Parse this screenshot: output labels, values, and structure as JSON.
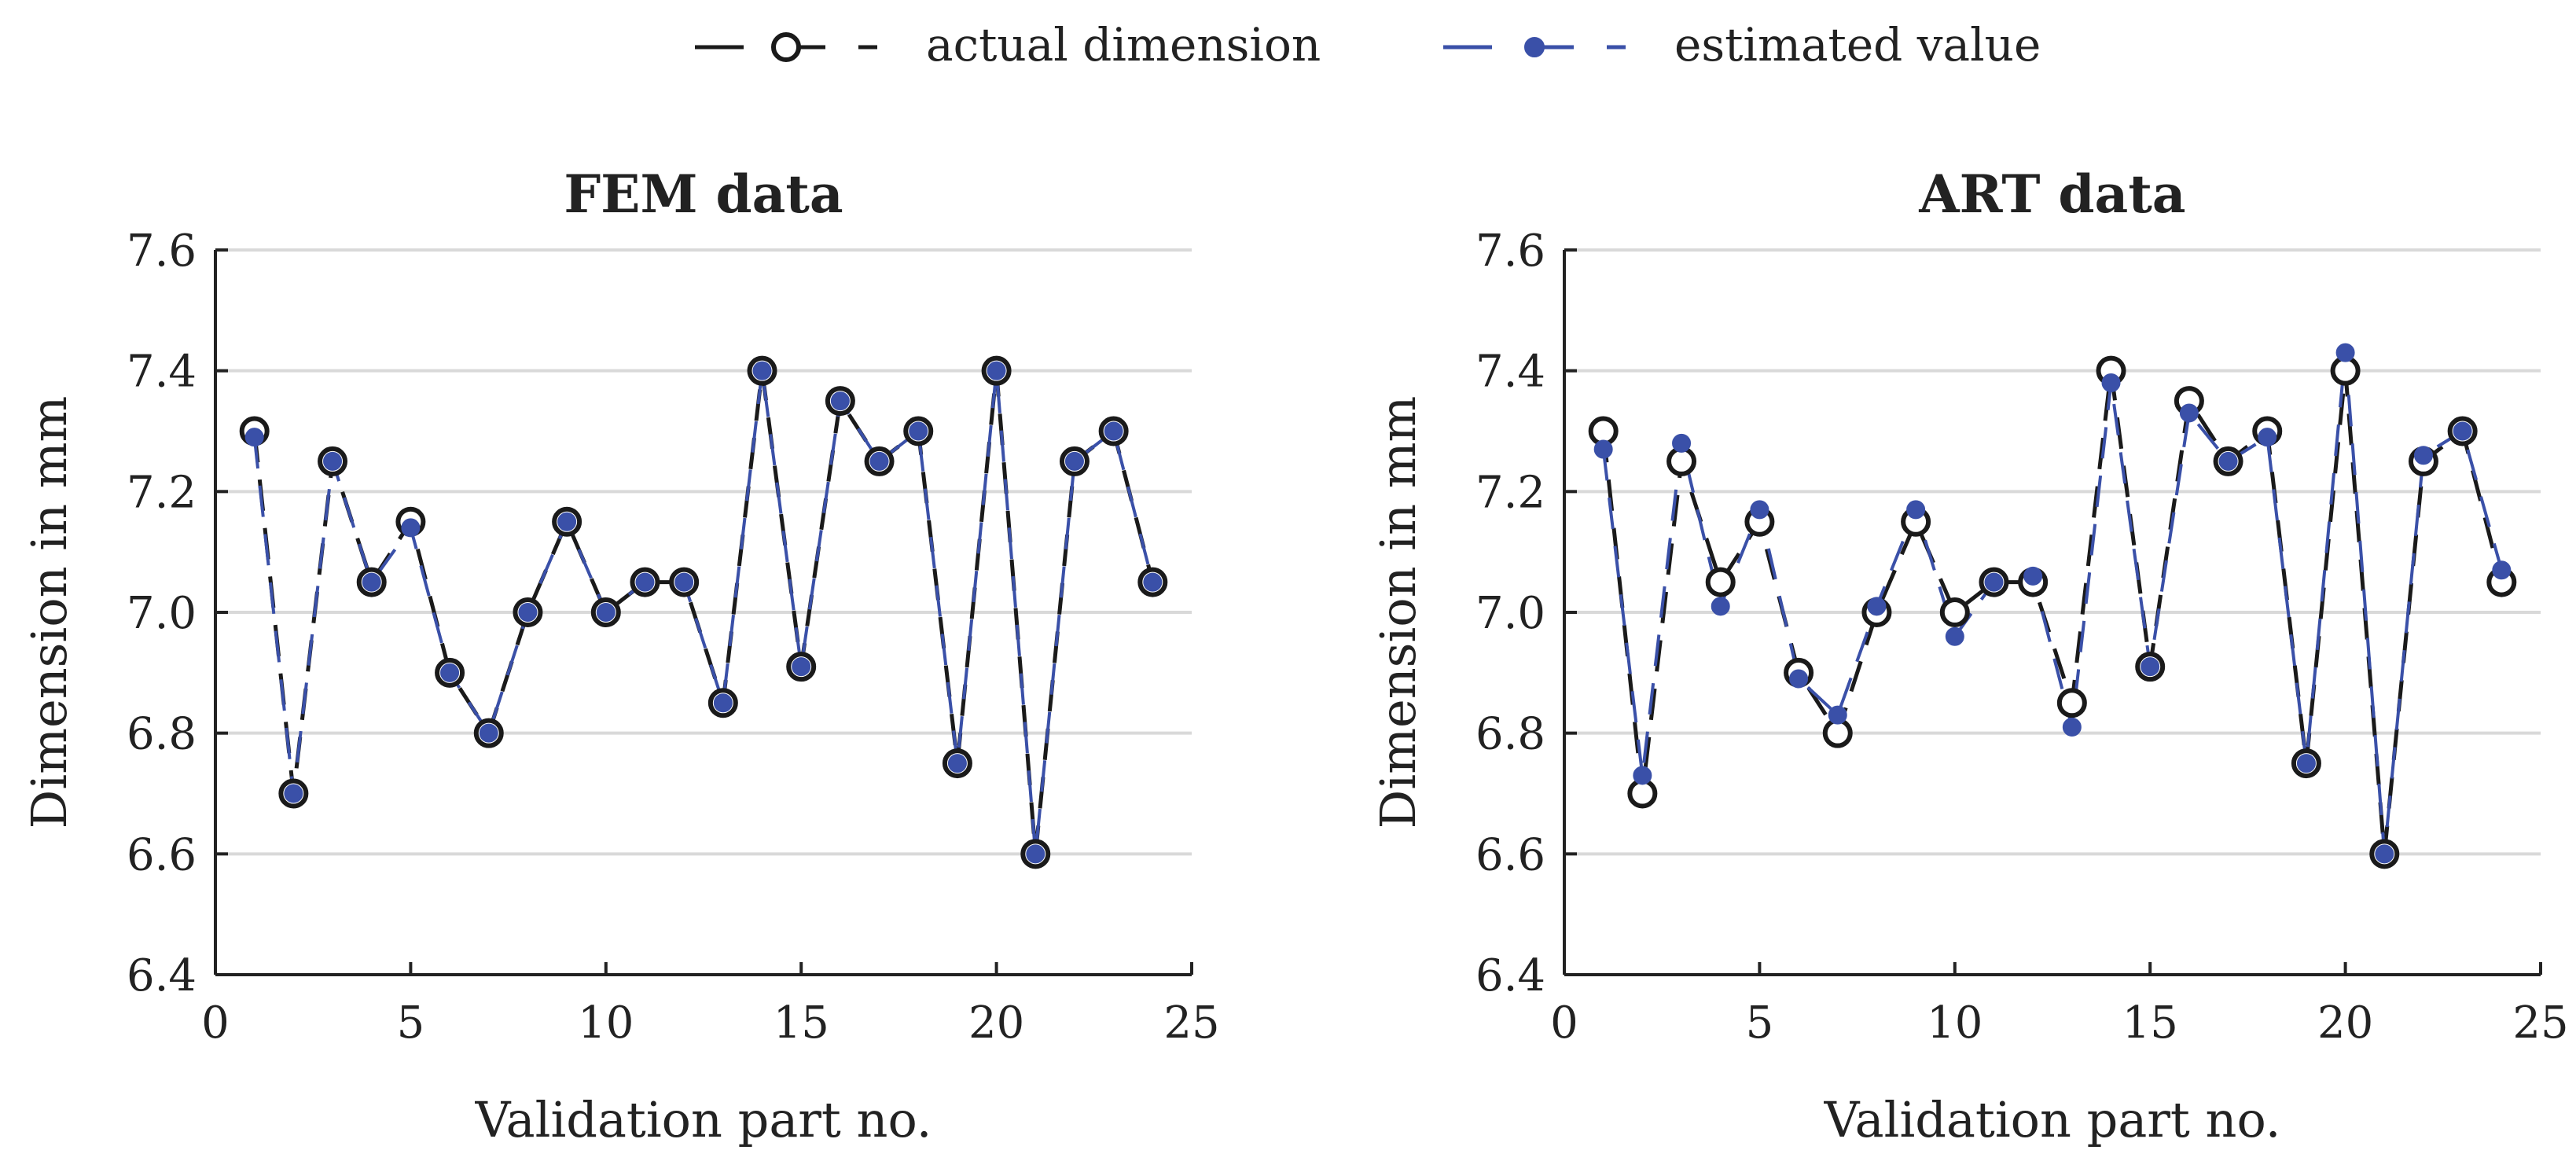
{
  "colors": {
    "actual": "#1a1a1a",
    "estimated": "#3a50a8",
    "grid": "#d9d9d9",
    "axis": "#222222"
  },
  "legend": {
    "actual_label": "actual dimension",
    "estimated_label": "estimated value"
  },
  "chart_data": [
    {
      "type": "line",
      "title": "FEM data",
      "xlabel": "Validation part no.",
      "ylabel": "Dimension in mm",
      "xlim": [
        0,
        25
      ],
      "ylim": [
        6.4,
        7.6
      ],
      "xticks": [
        0,
        5,
        10,
        15,
        20,
        25
      ],
      "yticks": [
        6.4,
        6.6,
        6.8,
        7.0,
        7.2,
        7.4,
        7.6
      ],
      "ytick_labels": [
        "6.4",
        "6.6",
        "6.8",
        "7.0",
        "7.2",
        "7.4",
        "7.6"
      ],
      "grid": "y",
      "x": [
        1,
        2,
        3,
        4,
        5,
        6,
        7,
        8,
        9,
        10,
        11,
        12,
        13,
        14,
        15,
        16,
        17,
        18,
        19,
        20,
        21,
        22,
        23,
        24
      ],
      "series": [
        {
          "name": "actual dimension",
          "values": [
            7.3,
            6.7,
            7.25,
            7.05,
            7.15,
            6.9,
            6.8,
            7.0,
            7.15,
            7.0,
            7.05,
            7.05,
            6.85,
            7.4,
            6.91,
            7.35,
            7.25,
            7.3,
            6.75,
            7.4,
            6.6,
            7.25,
            7.3,
            7.05
          ]
        },
        {
          "name": "estimated value",
          "values": [
            7.29,
            6.7,
            7.25,
            7.05,
            7.14,
            6.9,
            6.8,
            7.0,
            7.15,
            7.0,
            7.05,
            7.05,
            6.85,
            7.4,
            6.91,
            7.35,
            7.25,
            7.3,
            6.75,
            7.4,
            6.6,
            7.25,
            7.3,
            7.05
          ]
        }
      ]
    },
    {
      "type": "line",
      "title": "ART data",
      "xlabel": "Validation part no.",
      "ylabel": "Dimension in mm",
      "xlim": [
        0,
        25
      ],
      "ylim": [
        6.4,
        7.6
      ],
      "xticks": [
        0,
        5,
        10,
        15,
        20,
        25
      ],
      "yticks": [
        6.4,
        6.6,
        6.8,
        7.0,
        7.2,
        7.4,
        7.6
      ],
      "ytick_labels": [
        "6.4",
        "6.6",
        "6.8",
        "7.0",
        "7.2",
        "7.4",
        "7.6"
      ],
      "grid": "y",
      "x": [
        1,
        2,
        3,
        4,
        5,
        6,
        7,
        8,
        9,
        10,
        11,
        12,
        13,
        14,
        15,
        16,
        17,
        18,
        19,
        20,
        21,
        22,
        23,
        24
      ],
      "series": [
        {
          "name": "actual dimension",
          "values": [
            7.3,
            6.7,
            7.25,
            7.05,
            7.15,
            6.9,
            6.8,
            7.0,
            7.15,
            7.0,
            7.05,
            7.05,
            6.85,
            7.4,
            6.91,
            7.35,
            7.25,
            7.3,
            6.75,
            7.4,
            6.6,
            7.25,
            7.3,
            7.05
          ]
        },
        {
          "name": "estimated value",
          "values": [
            7.27,
            6.73,
            7.28,
            7.01,
            7.17,
            6.89,
            6.83,
            7.01,
            7.17,
            6.96,
            7.05,
            7.06,
            6.81,
            7.38,
            6.91,
            7.33,
            7.25,
            7.29,
            6.75,
            7.43,
            6.6,
            7.26,
            7.3,
            7.07
          ]
        }
      ]
    }
  ]
}
